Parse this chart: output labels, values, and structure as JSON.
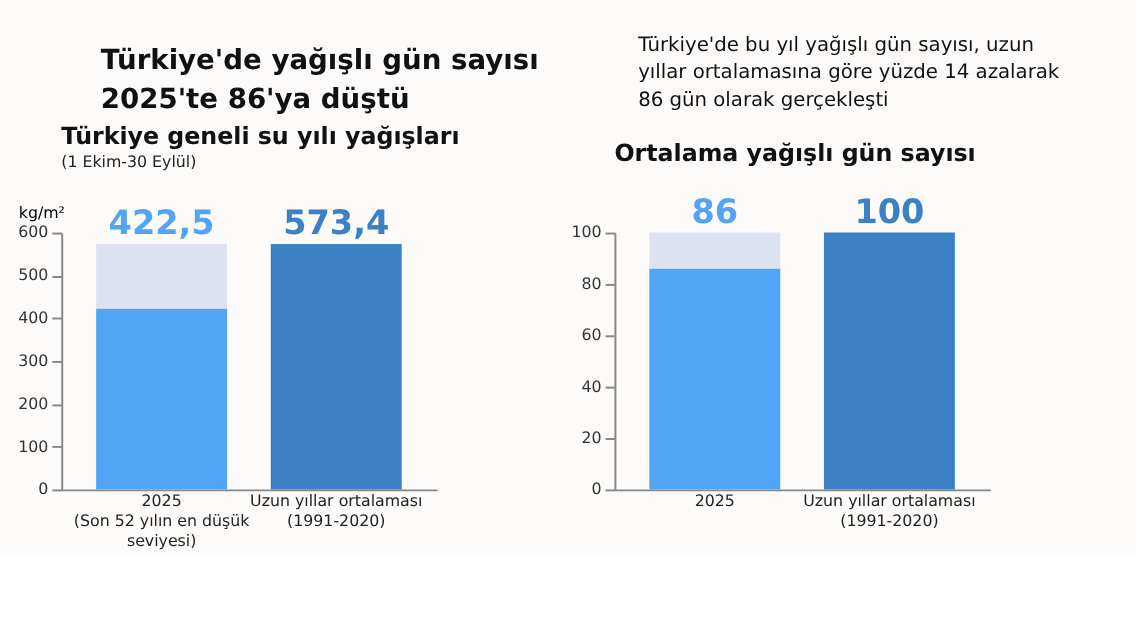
{
  "chart_data": [
    {
      "type": "bar",
      "title": "Türkiye geneli su yılı yağışları",
      "subtitle": "(1 Ekim-30 Eylül)",
      "ylabel": "kg/m²",
      "annotations": [
        "Türkiye'de yağışlı gün sayısı\n2025'te 86'ya düştü",
        "Türkiye'de bu yıl yağışlı gün sayısı, uzun\nyıllar ortalamasına göre yüzde 14 azalarak\n86 gün olarak gerçekleşti"
      ],
      "categories": [
        "2025\n(Son 52 yılın en düşük\nseviyesi)",
        "Uzun yıllar ortalaması\n(1991-2020)"
      ],
      "stacked": true,
      "series": [
        {
          "colors": [
            "#52a5f5",
            "#3b81c3"
          ],
          "values": [
            422.5,
            573.4
          ],
          "value_labels": [
            "422,5",
            "573,4"
          ]
        },
        {
          "color": "#dde2f0",
          "values": [
            151,
            null
          ]
        }
      ],
      "ylim": [
        0,
        600
      ],
      "yticks": [
        0,
        100,
        200,
        300,
        400,
        500,
        600
      ],
      "grid": false
    },
    {
      "type": "bar",
      "title": "Ortalama yağışlı gün sayısı",
      "categories": [
        "2025",
        "Uzun yıllar ortalaması\n(1991-2020)"
      ],
      "stacked": true,
      "series": [
        {
          "colors": [
            "#52a5f5",
            "#3b81c3"
          ],
          "values": [
            86,
            100
          ],
          "value_labels": [
            "86",
            "100"
          ]
        },
        {
          "color": "#dde2f0",
          "values": [
            14,
            null
          ]
        }
      ],
      "ylim": [
        0,
        100
      ],
      "yticks": [
        0,
        20,
        40,
        60,
        80,
        100
      ],
      "grid": false
    }
  ]
}
